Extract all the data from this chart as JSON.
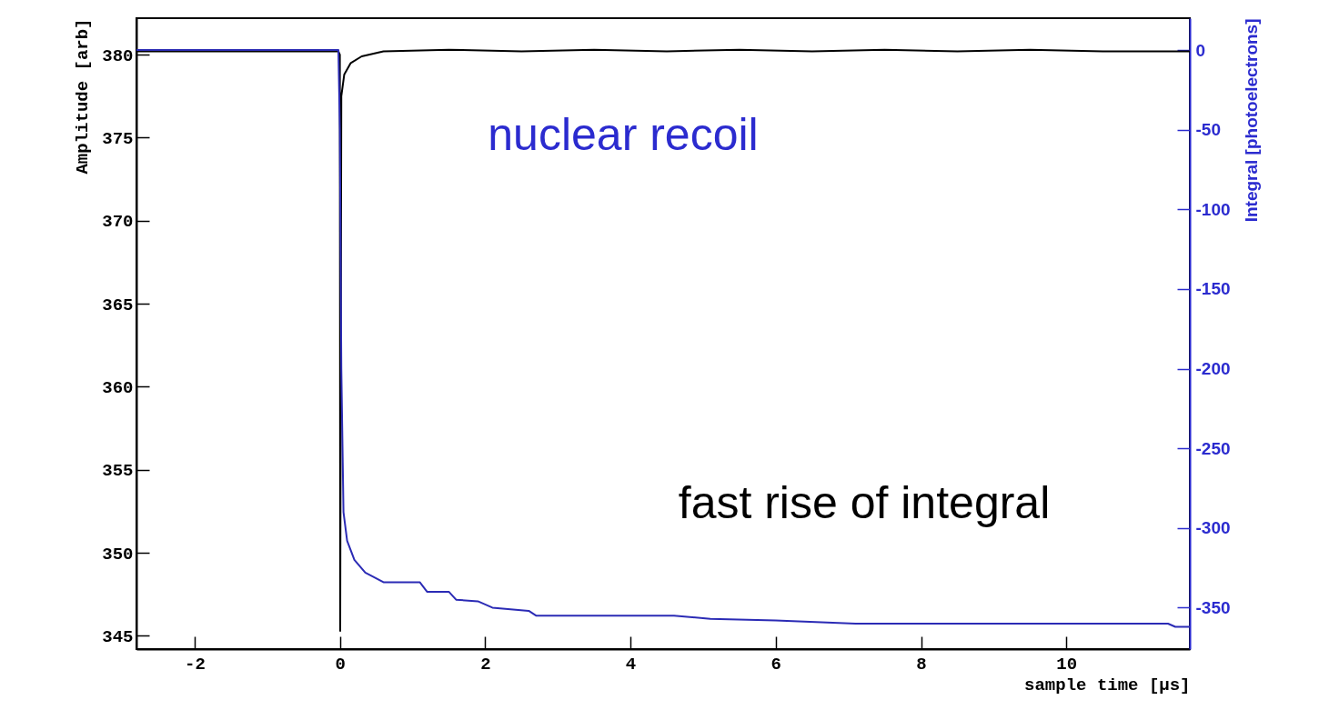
{
  "chart_data": {
    "type": "line",
    "xlabel": "sample time [μs]",
    "ylabel": "Amplitude [arb]",
    "y2label": "Integral [photoelectrons]",
    "xlim": [
      -2.8,
      11.7
    ],
    "xticks": [
      -2,
      0,
      2,
      4,
      6,
      8,
      10
    ],
    "ylim": [
      344.2,
      382.2
    ],
    "yticks": [
      345,
      350,
      355,
      360,
      365,
      370,
      375,
      380
    ],
    "y2lim": [
      -376,
      20
    ],
    "y2ticks": [
      0,
      -50,
      -100,
      -150,
      -200,
      -250,
      -300,
      -350
    ],
    "grid": false,
    "annotations": [
      "nuclear recoil",
      "fast rise of integral"
    ],
    "series": [
      {
        "color": "#000000",
        "x": [
          -2.8,
          -0.02,
          0,
          0.005,
          0.02,
          0.06,
          0.15,
          0.3,
          0.6,
          1.5,
          2.5,
          3.5,
          4.5,
          5.5,
          6.5,
          7.5,
          8.5,
          9.5,
          10.5,
          11.7
        ],
        "values": [
          380.2,
          380.2,
          380.0,
          345.3,
          377.5,
          378.8,
          379.5,
          379.9,
          380.2,
          380.3,
          380.2,
          380.3,
          380.2,
          380.3,
          380.2,
          380.3,
          380.2,
          380.3,
          380.2,
          380.2
        ]
      },
      {
        "color": "#2b2bb5",
        "axis": "y2",
        "x": [
          -2.8,
          -0.02,
          0.0,
          0.02,
          0.05,
          0.1,
          0.2,
          0.35,
          0.6,
          1.1,
          1.2,
          1.5,
          1.6,
          1.9,
          2.1,
          2.6,
          2.7,
          4.6,
          5.1,
          6.0,
          7.1,
          11.4,
          11.5,
          11.7
        ],
        "values": [
          0,
          0,
          -50,
          -200,
          -290,
          -308,
          -320,
          -328,
          -334,
          -334,
          -340,
          -340,
          -345,
          -346,
          -350,
          -352,
          -355,
          -355,
          -357,
          -358,
          -360,
          -360,
          -362,
          -362
        ]
      }
    ]
  }
}
